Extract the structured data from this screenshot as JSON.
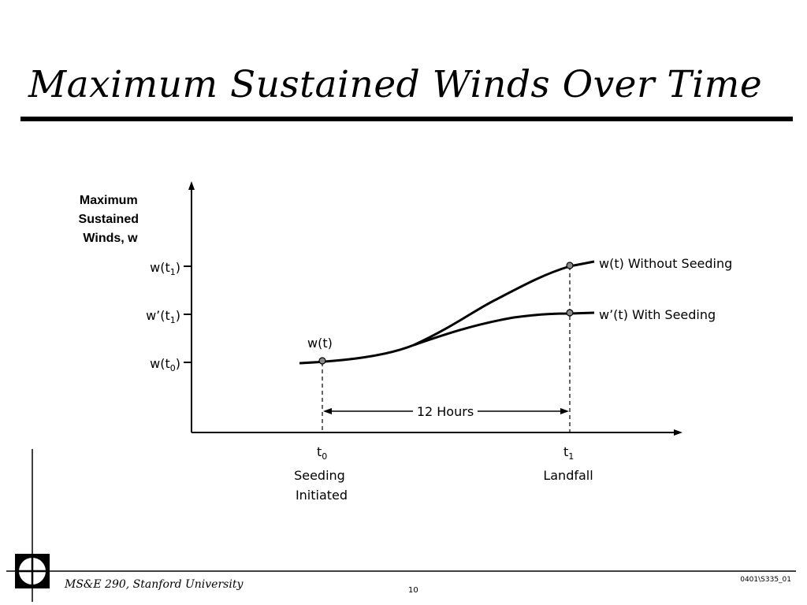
{
  "slide": {
    "title": "Maximum Sustained Winds Over Time",
    "footer_left": "MS&E 290, Stanford University",
    "page_number": "10",
    "doc_code": "0401\\S335_01"
  },
  "diagram": {
    "y_axis_title": [
      "Maximum",
      "Sustained",
      "Winds, w"
    ],
    "y_ticks": [
      {
        "base": "w(t",
        "sub": "1",
        "tail": ")"
      },
      {
        "base": "w’(t",
        "sub": "1",
        "tail": ")"
      },
      {
        "base": "w(t",
        "sub": "0",
        "tail": ")"
      }
    ],
    "x_ticks": [
      {
        "base": "t",
        "sub": "0",
        "caption": [
          "Seeding",
          "Initiated"
        ]
      },
      {
        "base": "t",
        "sub": "1",
        "caption": [
          "Landfall"
        ]
      }
    ],
    "point_label_start": "w(t)",
    "curve_without_seeding_label": "w(t) Without Seeding",
    "curve_with_seeding_label": "w’(t) With Seeding",
    "interval_label": "12 Hours"
  }
}
